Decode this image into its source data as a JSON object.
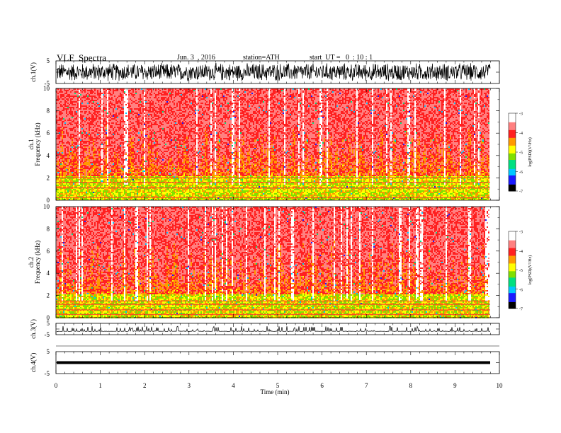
{
  "header": {
    "title": "VLF  Spectra",
    "date": "Jun. 3  , 2016",
    "station": "station=ATH",
    "start": "start  UT =   0  : 10 : 1"
  },
  "chart_data": [
    {
      "type": "line",
      "panel": "ch1-waveform",
      "ylabel": "ch.1(V)",
      "ylim": [
        -5,
        5
      ],
      "yticks": [
        "5",
        "-5"
      ],
      "description_values": "dense noise oscillation roughly between -4 and 4 V across 0–9.8 min",
      "color": "#000000"
    },
    {
      "type": "heatmap",
      "panel": "ch1-spectrogram",
      "ylabel": "ch.1\nFrequency (kHz)",
      "ylim": [
        0,
        10
      ],
      "yticks": [
        "0",
        "2",
        "4",
        "6",
        "8",
        "10"
      ],
      "xlim": [
        0,
        9.8
      ],
      "dominant_level_high_freq": -4,
      "dominant_level_low_freq": -5,
      "hum_lines_khz": [
        0.25,
        1.1,
        1.6,
        2.0
      ],
      "colorbar": {
        "label": "log(PSD)(V²/Hz)",
        "ticks": [
          "-3",
          "-4",
          "-5",
          "-6",
          "-7"
        ],
        "range": [
          -7,
          -3
        ]
      }
    },
    {
      "type": "heatmap",
      "panel": "ch2-spectrogram",
      "ylabel": "ch.2\nFrequency (kHz)",
      "ylim": [
        0,
        10
      ],
      "yticks": [
        "0",
        "2",
        "4",
        "6",
        "8",
        "10"
      ],
      "xlim": [
        0,
        9.8
      ],
      "dominant_level_high_freq": -4,
      "dominant_level_low_freq": -5,
      "hum_lines_khz": [
        0.3,
        0.7,
        1.2,
        1.5
      ],
      "colorbar": {
        "label": "log(PSD)(V²/Hz)",
        "ticks": [
          "-3",
          "-4",
          "-5",
          "-6",
          "-7"
        ],
        "range": [
          -7,
          -3
        ]
      }
    },
    {
      "type": "line",
      "panel": "ch3-waveform",
      "ylabel": "ch.3(V)",
      "ylim": [
        -5,
        5
      ],
      "yticks": [
        "5",
        "-5"
      ],
      "description_values": "baseline about -2 V with frequent short spikes up to about 2 V",
      "color": "#000000"
    },
    {
      "type": "line",
      "panel": "ch4-waveform",
      "ylabel": "ch.4(V)",
      "ylim": [
        -5,
        5
      ],
      "yticks": [
        "5",
        "-5"
      ],
      "constant_value": 0,
      "color": "#000000"
    }
  ],
  "xaxis": {
    "label": "Time  (min)",
    "ticks": [
      "0",
      "1",
      "2",
      "3",
      "4",
      "5",
      "6",
      "7",
      "8",
      "9",
      "10"
    ],
    "xlim": [
      0,
      10
    ]
  },
  "colormap": [
    "#000000",
    "#1a1aff",
    "#00c8ff",
    "#00e080",
    "#80e000",
    "#ffff00",
    "#ff9900",
    "#ff2020",
    "#ff8080",
    "#ffffff"
  ]
}
